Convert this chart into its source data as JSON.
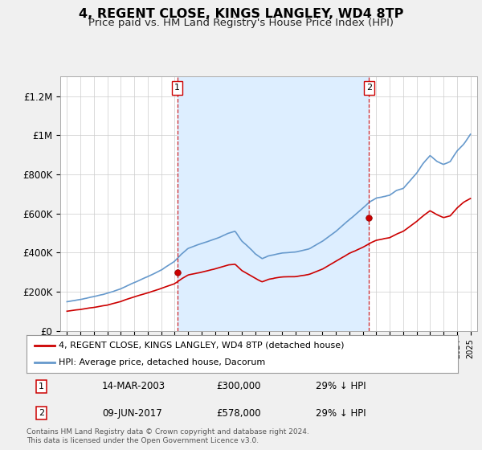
{
  "title": "4, REGENT CLOSE, KINGS LANGLEY, WD4 8TP",
  "subtitle": "Price paid vs. HM Land Registry's House Price Index (HPI)",
  "title_fontsize": 11.5,
  "subtitle_fontsize": 9.5,
  "bg_color": "#f0f0f0",
  "plot_bg_color": "#ffffff",
  "shade_color": "#ddeeff",
  "grid_color": "#cccccc",
  "red_color": "#cc0000",
  "blue_color": "#6699cc",
  "transaction1_date": "14-MAR-2003",
  "transaction1_price": 300000,
  "transaction1_label": "29% ↓ HPI",
  "transaction2_date": "09-JUN-2017",
  "transaction2_price": 578000,
  "transaction2_label": "29% ↓ HPI",
  "legend_label1": "4, REGENT CLOSE, KINGS LANGLEY, WD4 8TP (detached house)",
  "legend_label2": "HPI: Average price, detached house, Dacorum",
  "footer": "Contains HM Land Registry data © Crown copyright and database right 2024.\nThis data is licensed under the Open Government Licence v3.0.",
  "ylim": [
    0,
    1300000
  ],
  "yticks": [
    0,
    200000,
    400000,
    600000,
    800000,
    1000000,
    1200000
  ],
  "ytick_labels": [
    "£0",
    "£200K",
    "£400K",
    "£600K",
    "£800K",
    "£1M",
    "£1.2M"
  ],
  "t1_x": 2003.2,
  "t2_x": 2017.45,
  "t1_y": 300000,
  "t2_y": 578000,
  "xlim_left": 1994.5,
  "xlim_right": 2025.5
}
